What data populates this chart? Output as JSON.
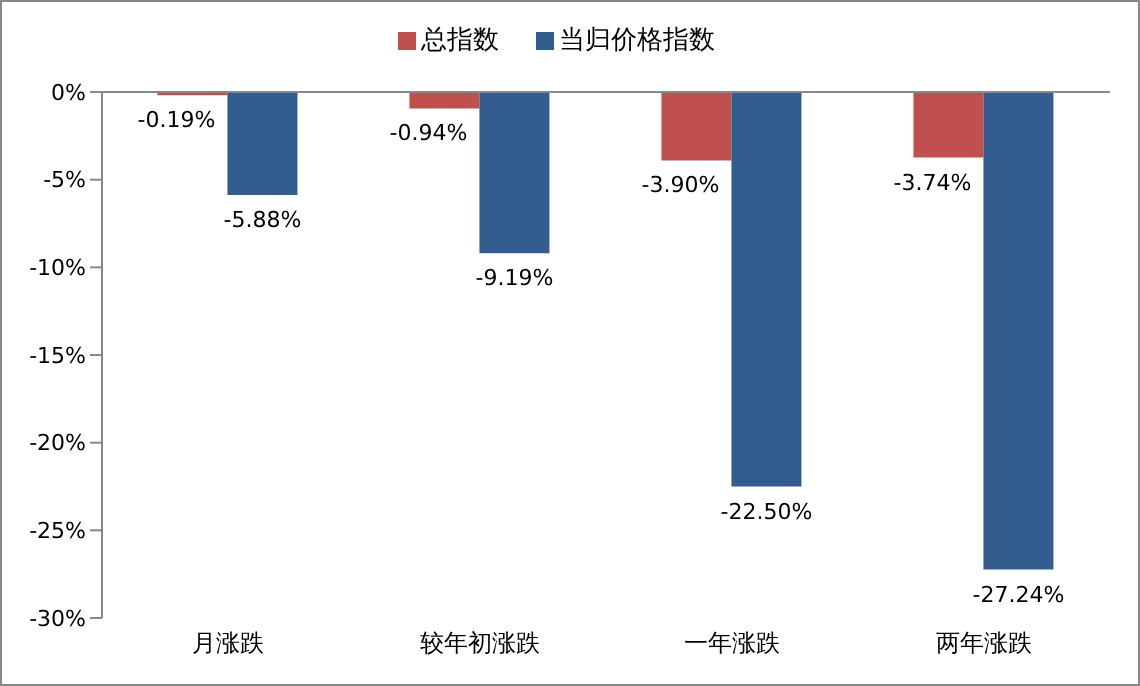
{
  "chart_data": {
    "type": "bar",
    "categories": [
      "月涨跌",
      "较年初涨跌",
      "一年涨跌",
      "两年涨跌"
    ],
    "series": [
      {
        "name": "总指数",
        "color": "#c0504d",
        "values": [
          -0.19,
          -0.94,
          -3.9,
          -3.74
        ],
        "value_labels": [
          "-0.19%",
          "-0.94%",
          "-3.90%",
          "-3.74%"
        ]
      },
      {
        "name": "当归价格指数",
        "color": "#335c8f",
        "values": [
          -5.88,
          -9.19,
          -22.5,
          -27.24
        ],
        "value_labels": [
          "-5.88%",
          "-9.19%",
          "-22.50%",
          "-27.24%"
        ]
      }
    ],
    "ylim": [
      -30,
      0
    ],
    "yticks": [
      {
        "value": 0,
        "label": "0%"
      },
      {
        "value": -5,
        "label": "-5%"
      },
      {
        "value": -10,
        "label": "-10%"
      },
      {
        "value": -15,
        "label": "-15%"
      },
      {
        "value": -20,
        "label": "-20%"
      },
      {
        "value": -25,
        "label": "-25%"
      },
      {
        "value": -30,
        "label": "-30%"
      }
    ],
    "grid": false,
    "legend": "top"
  }
}
